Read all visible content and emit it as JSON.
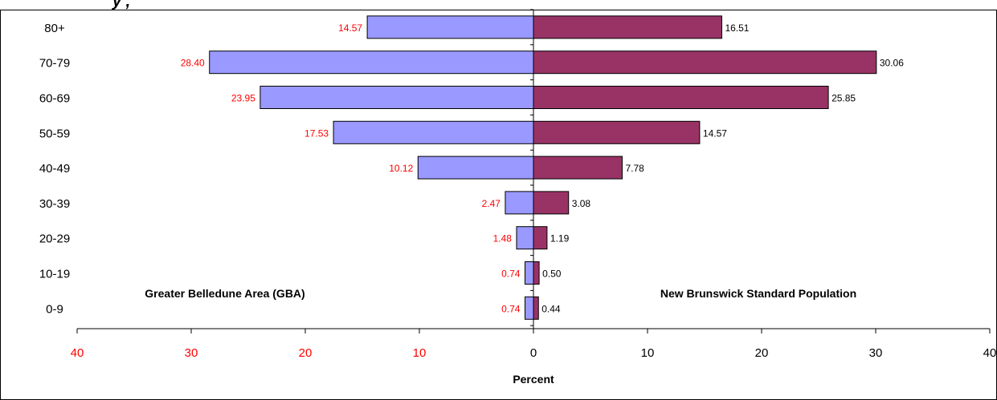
{
  "page": {
    "title_fragment": "y   ,"
  },
  "chart_data": {
    "type": "bar",
    "orientation": "horizontal-butterfly",
    "categories": [
      "80+",
      "70-79",
      "60-69",
      "50-59",
      "40-49",
      "30-39",
      "20-29",
      "10-19",
      "0-9"
    ],
    "series": [
      {
        "name": "Greater Belledune Area (GBA)",
        "side": "left",
        "values": [
          14.57,
          28.4,
          23.95,
          17.53,
          10.12,
          2.47,
          1.48,
          0.74,
          0.74
        ],
        "labels": [
          "14.57",
          "28.40",
          "23.95",
          "17.53",
          "10.12",
          "2.47",
          "1.48",
          "0.74",
          "0.74"
        ],
        "color": "#9999ff",
        "label_color": "#ff0000"
      },
      {
        "name": "New Brunswick Standard Population",
        "side": "right",
        "values": [
          16.51,
          30.06,
          25.85,
          14.57,
          7.78,
          3.08,
          1.19,
          0.5,
          0.44
        ],
        "labels": [
          "16.51",
          "30.06",
          "25.85",
          "14.57",
          "7.78",
          "3.08",
          "1.19",
          "0.50",
          "0.44"
        ],
        "color": "#993366",
        "label_color": "#000000"
      }
    ],
    "x_ticks_left": [
      "40",
      "30",
      "20",
      "10"
    ],
    "x_ticks_right": [
      "0",
      "10",
      "20",
      "30",
      "40"
    ],
    "xlim": [
      -40,
      40
    ],
    "xlabel": "Percent",
    "ylabel": "",
    "tick_left_color": "#ff0000",
    "tick_right_color": "#000000",
    "grid": false
  }
}
